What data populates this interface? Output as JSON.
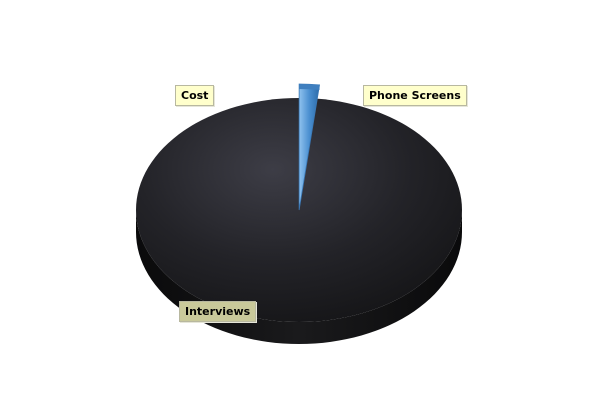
{
  "chart_data": {
    "type": "pie",
    "style": "3d",
    "slices": [
      {
        "label": "Phone Screens",
        "value": 2,
        "color": "#4a8fd0"
      },
      {
        "label": "Interviews",
        "value": 98,
        "color": "#1c1c20"
      },
      {
        "label": "Cost",
        "value": 0,
        "color": "#1c1c20"
      }
    ],
    "legend": "none"
  }
}
